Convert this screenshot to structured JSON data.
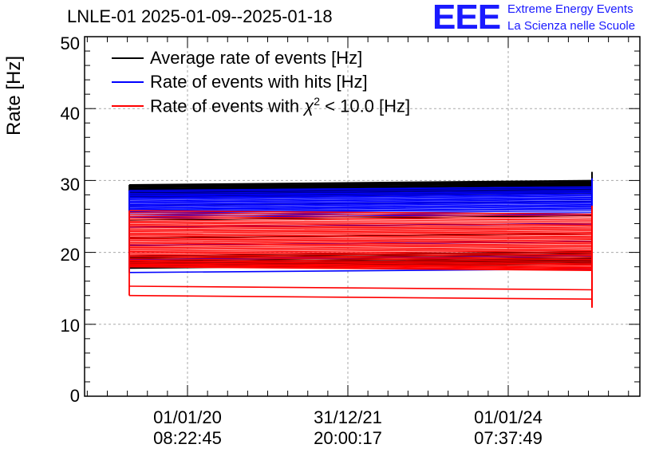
{
  "chart_data": {
    "type": "line",
    "title": "LNLE-01 2025-01-09--2025-01-18",
    "ylabel": "Rate [Hz]",
    "xlabel": "",
    "ylim": [
      0,
      50
    ],
    "yticks": [
      "0",
      "10",
      "20",
      "30",
      "40",
      "50"
    ],
    "xticks": [
      {
        "date": "01/01/20",
        "time": "08:22:45"
      },
      {
        "date": "31/12/21",
        "time": "20:00:17"
      },
      {
        "date": "01/01/24",
        "time": "07:37:49"
      }
    ],
    "grid": true,
    "legend": {
      "position": "top-left",
      "entries": [
        {
          "label": "Average rate of events [Hz]",
          "color": "#000000"
        },
        {
          "label": "Rate of events with hits [Hz]",
          "color": "#0000ff"
        },
        {
          "label_prefix": "Rate of events with ",
          "label_symbol": "χ",
          "label_sup": "2",
          "label_suffix": " < 10.0 [Hz]",
          "color": "#ff0000"
        }
      ]
    },
    "series": [
      {
        "name": "Average rate of events [Hz]",
        "color": "#000000",
        "levels": [
          29.4,
          29.1,
          28.8,
          28.5,
          28.2,
          27.9,
          27.6,
          26.5,
          24.5,
          22.0,
          19.5,
          19.0,
          18.5,
          18.2,
          17.8
        ],
        "drift": 0.6
      },
      {
        "name": "Rate of events with hits [Hz]",
        "color": "#0000ff",
        "levels": [
          28.6,
          28.0,
          27.5,
          27.0,
          26.5,
          26.0,
          25.5,
          24.8,
          23.5,
          21.0,
          19.0,
          17.2
        ],
        "drift": 0.5
      },
      {
        "name": "Rate of events with chi2 < 10.0 [Hz]",
        "color": "#ff0000",
        "levels": [
          25.8,
          25.0,
          24.3,
          23.7,
          23.1,
          22.5,
          21.9,
          21.3,
          20.7,
          20.1,
          19.5,
          18.9,
          18.4,
          18.0,
          15.3,
          14.0
        ],
        "drift": -0.5
      }
    ]
  },
  "header": {
    "logo_text": "EEE",
    "logo_line1": "Extreme Energy Events",
    "logo_line2": "La Scienza nelle Scuole"
  }
}
